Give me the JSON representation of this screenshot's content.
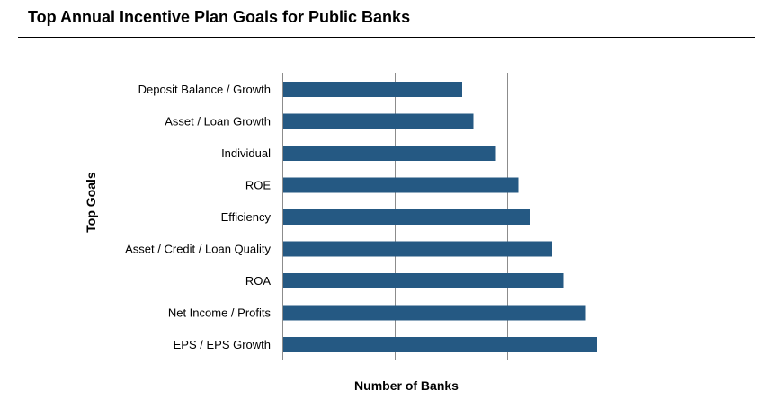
{
  "header": {
    "title": "Top Annual Incentive Plan Goals for Public Banks"
  },
  "chart_data": {
    "type": "bar",
    "orientation": "horizontal",
    "title": "Top Annual Incentive Plan Goals for Public Banks",
    "xlabel": "Number of Banks",
    "ylabel": "Top Goals",
    "categories": [
      "Deposit Balance / Growth",
      "Asset / Loan Growth",
      "Individual",
      "ROE",
      "Efficiency",
      "Asset / Credit / Loan Quality",
      "ROA",
      "Net Income / Profits",
      "EPS / EPS Growth"
    ],
    "values": [
      1.6,
      1.7,
      1.9,
      2.1,
      2.2,
      2.4,
      2.5,
      2.7,
      2.8
    ],
    "xlim": [
      0,
      3
    ],
    "grid": "vertical",
    "bar_color": "#255983",
    "gridline_color": "#8c8c8c"
  }
}
